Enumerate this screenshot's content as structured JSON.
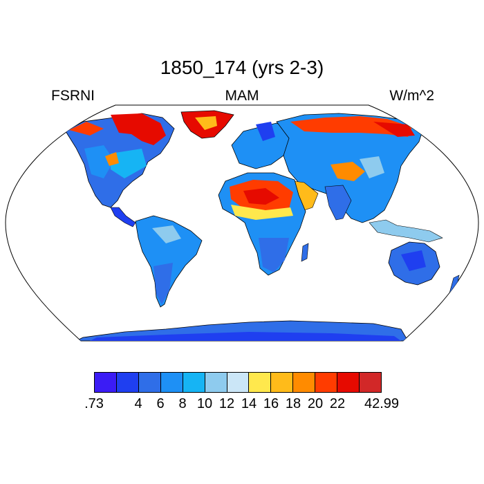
{
  "title": "1850_174 (yrs 2-3)",
  "left_label": "FSRNI",
  "center_label": "MAM",
  "right_label": "W/m^2",
  "colorbar": {
    "colors": [
      "#3b1cf5",
      "#1f3ff0",
      "#2f6ee8",
      "#1e90f5",
      "#16b4f4",
      "#8ecbee",
      "#cbe6f7",
      "#ffe84d",
      "#ffbb1a",
      "#ff8b00",
      "#ff3c00",
      "#e60a00",
      "#d22828"
    ],
    "tick_labels": [
      ".73",
      "4",
      "6",
      "8",
      "10",
      "12",
      "14",
      "16",
      "18",
      "20",
      "22",
      "42.99"
    ]
  }
}
